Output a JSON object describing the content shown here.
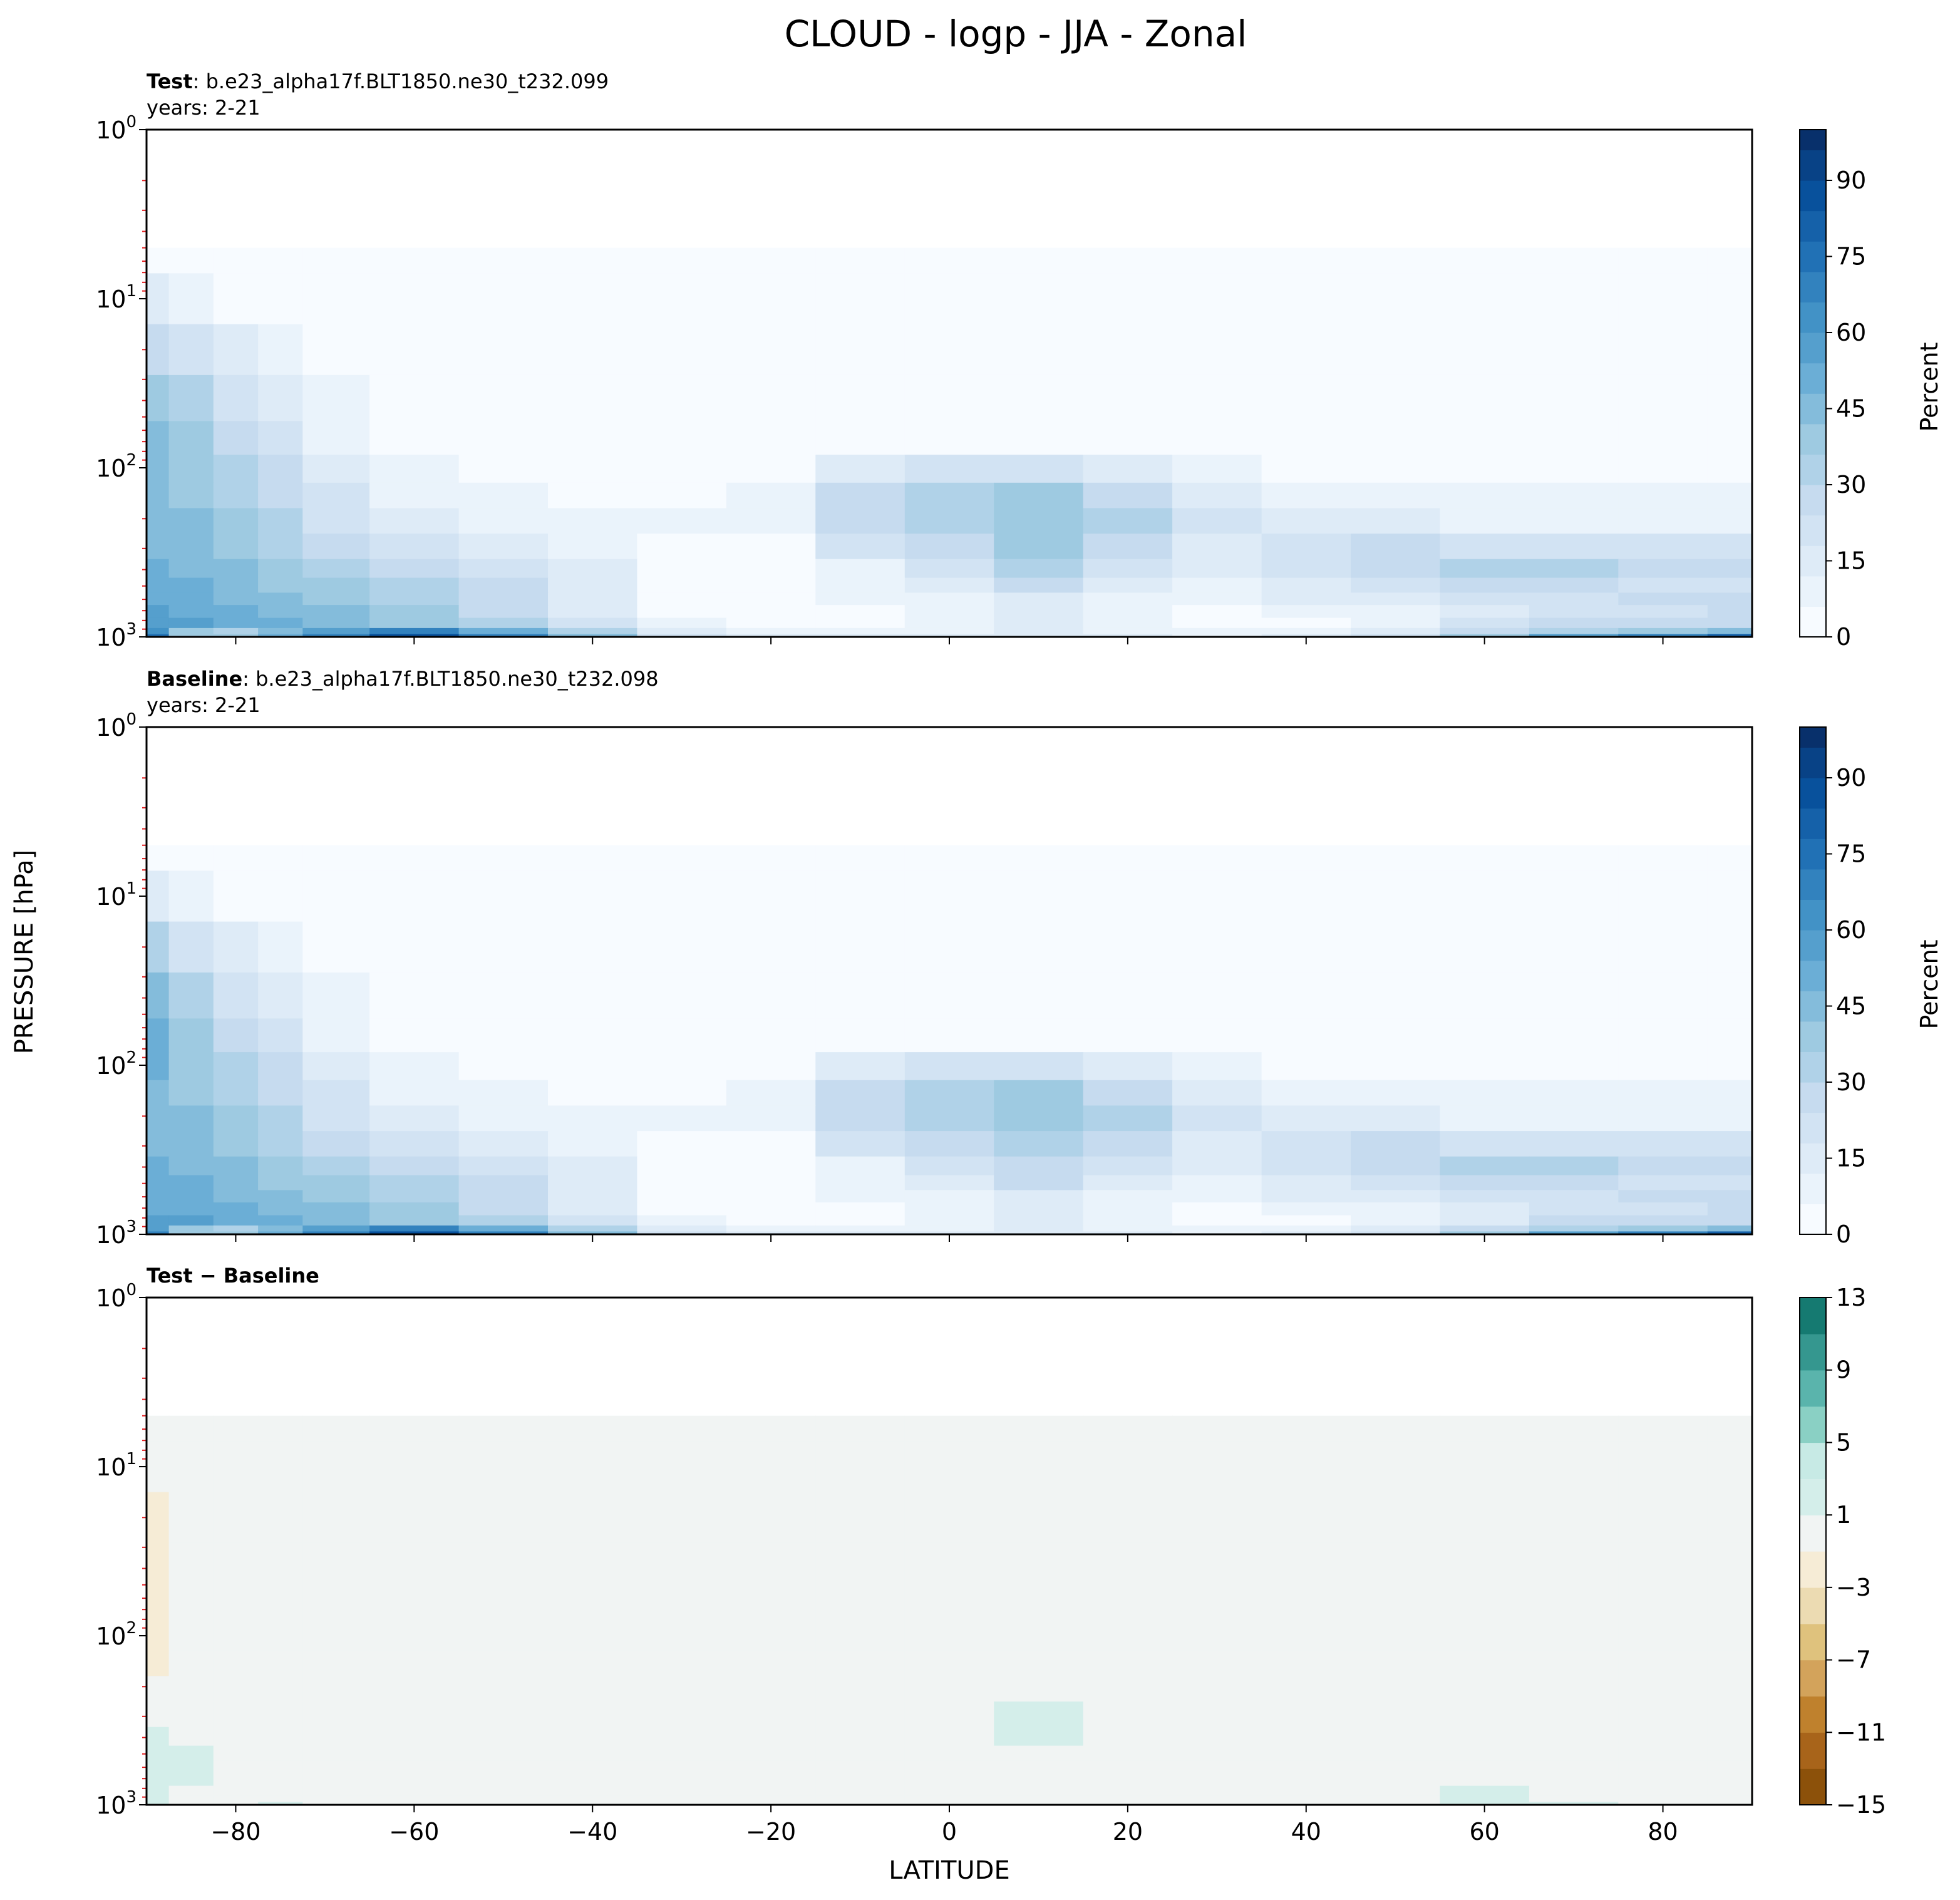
{
  "title": "CLOUD - logp - JJA - Zonal",
  "shared": {
    "ylabel": "PRESSURE [hPa]",
    "xlabel": "LATITUDE",
    "xticks": [
      -80,
      -60,
      -40,
      -20,
      0,
      20,
      40,
      60,
      80
    ],
    "xtick_labels": [
      "−80",
      "−60",
      "−40",
      "−20",
      "0",
      "20",
      "40",
      "60",
      "80"
    ],
    "ytick_labels": [
      {
        "base": "10",
        "exp": "0"
      },
      {
        "base": "10",
        "exp": "1"
      },
      {
        "base": "10",
        "exp": "2"
      },
      {
        "base": "10",
        "exp": "3"
      }
    ]
  },
  "panels": [
    {
      "key": "test",
      "head_bold": "Test",
      "head_rest": ": b.e23_alpha17f.BLT1850.ne30_t232.099",
      "line2": "years: 2-21",
      "colorbar_label": "Percent",
      "colorbar_ticks": [
        "0",
        "15",
        "30",
        "45",
        "60",
        "75",
        "90"
      ]
    },
    {
      "key": "baseline",
      "head_bold": "Baseline",
      "head_rest": ": b.e23_alpha17f.BLT1850.ne30_t232.098",
      "line2": "years: 2-21",
      "colorbar_label": "Percent",
      "colorbar_ticks": [
        "0",
        "15",
        "30",
        "45",
        "60",
        "75",
        "90"
      ]
    },
    {
      "key": "diff",
      "head_bold": "Test − Baseline",
      "head_rest": "",
      "line2": "",
      "colorbar_label": "",
      "colorbar_ticks": [
        "−15",
        "−11",
        "−7",
        "−3",
        "1",
        "5",
        "9",
        "13"
      ]
    }
  ],
  "colors": {
    "blues": [
      "#f7fbff",
      "#eaf3fb",
      "#deebf7",
      "#d2e3f3",
      "#c6dbef",
      "#b0d2e8",
      "#9ecae1",
      "#84bcdb",
      "#6baed6",
      "#559fcd",
      "#4292c6",
      "#3282be",
      "#2171b5",
      "#1561a9",
      "#08519c",
      "#084286",
      "#08306b"
    ],
    "brbg": [
      "#6c3d0c",
      "#8c510a",
      "#a8641a",
      "#bf812d",
      "#d3a35b",
      "#dfc27d",
      "#ecdbb2",
      "#f6ecd6",
      "#f1f4f3",
      "#d4eeea",
      "#c7eae5",
      "#8ad0c4",
      "#5ab4ac",
      "#35978f",
      "#157a71",
      "#01665e",
      "#004d44"
    ]
  },
  "chart_data": [
    {
      "type": "heatmap",
      "name": "Test",
      "units": "Percent",
      "x_range": [
        -90,
        90
      ],
      "y_range": [
        1,
        1000
      ],
      "y_scale": "log",
      "y_inverted": true,
      "colorbar_range": [
        0,
        100
      ],
      "colorbar_levels": [
        0,
        6,
        12,
        18,
        24,
        30,
        36,
        42,
        48,
        54,
        60,
        66,
        72,
        78,
        84,
        90,
        96,
        100
      ],
      "lat": [
        -90,
        -85,
        -80,
        -75,
        -70,
        -60,
        -50,
        -40,
        -30,
        -20,
        -10,
        0,
        10,
        20,
        30,
        40,
        50,
        60,
        70,
        80,
        90
      ],
      "plev": [
        5,
        10,
        20,
        40,
        70,
        100,
        150,
        200,
        300,
        400,
        500,
        600,
        700,
        850,
        925,
        1000
      ],
      "values": [
        [
          0,
          0,
          0,
          0,
          0,
          0,
          0,
          0,
          0,
          0,
          0,
          0,
          0,
          0,
          0,
          0,
          0,
          0,
          0,
          0,
          0
        ],
        [
          12,
          6,
          2,
          1,
          0,
          0,
          0,
          0,
          0,
          0,
          0,
          0,
          0,
          0,
          0,
          0,
          0,
          0,
          0,
          0,
          0
        ],
        [
          28,
          20,
          12,
          6,
          2,
          1,
          0,
          0,
          0,
          0,
          0,
          0,
          0,
          0,
          0,
          0,
          0,
          0,
          0,
          0,
          0
        ],
        [
          40,
          32,
          22,
          14,
          6,
          2,
          1,
          0,
          0,
          0,
          1,
          1,
          1,
          1,
          0,
          0,
          0,
          0,
          0,
          0,
          0
        ],
        [
          46,
          38,
          28,
          20,
          10,
          4,
          2,
          1,
          1,
          1,
          3,
          4,
          5,
          4,
          2,
          1,
          1,
          1,
          1,
          1,
          1
        ],
        [
          46,
          40,
          32,
          24,
          14,
          6,
          3,
          2,
          2,
          4,
          12,
          20,
          22,
          16,
          8,
          4,
          3,
          3,
          3,
          3,
          3
        ],
        [
          44,
          40,
          34,
          28,
          18,
          10,
          6,
          4,
          4,
          10,
          24,
          32,
          36,
          28,
          16,
          8,
          6,
          6,
          6,
          6,
          6
        ],
        [
          44,
          42,
          36,
          30,
          22,
          14,
          10,
          6,
          6,
          10,
          26,
          34,
          40,
          30,
          18,
          12,
          12,
          10,
          10,
          10,
          10
        ],
        [
          46,
          44,
          38,
          34,
          28,
          20,
          14,
          10,
          4,
          2,
          18,
          28,
          36,
          26,
          16,
          18,
          24,
          22,
          22,
          20,
          20
        ],
        [
          48,
          46,
          42,
          38,
          32,
          26,
          20,
          14,
          4,
          1,
          10,
          22,
          30,
          20,
          12,
          20,
          28,
          32,
          34,
          26,
          24
        ],
        [
          50,
          48,
          44,
          40,
          36,
          30,
          24,
          16,
          4,
          1,
          8,
          16,
          24,
          16,
          10,
          16,
          22,
          26,
          26,
          22,
          22
        ],
        [
          52,
          50,
          46,
          44,
          40,
          34,
          26,
          16,
          4,
          1,
          6,
          10,
          14,
          10,
          8,
          12,
          16,
          20,
          22,
          24,
          26
        ],
        [
          54,
          52,
          48,
          46,
          42,
          36,
          28,
          16,
          4,
          1,
          4,
          8,
          12,
          8,
          4,
          6,
          10,
          16,
          20,
          22,
          24
        ],
        [
          58,
          54,
          50,
          48,
          46,
          40,
          30,
          18,
          6,
          2,
          4,
          8,
          12,
          6,
          2,
          3,
          8,
          18,
          24,
          26,
          28
        ],
        [
          60,
          40,
          30,
          44,
          56,
          66,
          50,
          30,
          12,
          6,
          6,
          10,
          12,
          10,
          6,
          6,
          12,
          26,
          34,
          40,
          46
        ],
        [
          72,
          40,
          36,
          52,
          70,
          84,
          70,
          44,
          22,
          12,
          12,
          14,
          16,
          14,
          10,
          12,
          20,
          40,
          56,
          70,
          80
        ]
      ]
    },
    {
      "type": "heatmap",
      "name": "Baseline",
      "units": "Percent",
      "x_range": [
        -90,
        90
      ],
      "y_range": [
        1,
        1000
      ],
      "y_scale": "log",
      "y_inverted": true,
      "colorbar_range": [
        0,
        100
      ],
      "colorbar_levels": [
        0,
        6,
        12,
        18,
        24,
        30,
        36,
        42,
        48,
        54,
        60,
        66,
        72,
        78,
        84,
        90,
        96,
        100
      ],
      "lat": [
        -90,
        -85,
        -80,
        -75,
        -70,
        -60,
        -50,
        -40,
        -30,
        -20,
        -10,
        0,
        10,
        20,
        30,
        40,
        50,
        60,
        70,
        80,
        90
      ],
      "plev": [
        5,
        10,
        20,
        40,
        70,
        100,
        150,
        200,
        300,
        400,
        500,
        600,
        700,
        850,
        925,
        1000
      ],
      "values": [
        [
          0,
          0,
          0,
          0,
          0,
          0,
          0,
          0,
          0,
          0,
          0,
          0,
          0,
          0,
          0,
          0,
          0,
          0,
          0,
          0,
          0
        ],
        [
          13,
          6,
          2,
          1,
          0,
          0,
          0,
          0,
          0,
          0,
          0,
          0,
          0,
          0,
          0,
          0,
          0,
          0,
          0,
          0,
          0
        ],
        [
          30,
          21,
          12,
          6,
          2,
          1,
          0,
          0,
          0,
          0,
          0,
          0,
          0,
          0,
          0,
          0,
          0,
          0,
          0,
          0,
          0
        ],
        [
          42,
          33,
          22,
          14,
          6,
          2,
          1,
          0,
          0,
          0,
          1,
          1,
          1,
          1,
          0,
          0,
          0,
          0,
          0,
          0,
          0
        ],
        [
          48,
          39,
          28,
          20,
          10,
          4,
          2,
          1,
          1,
          1,
          3,
          4,
          5,
          4,
          2,
          1,
          1,
          1,
          1,
          1,
          1
        ],
        [
          48,
          41,
          32,
          24,
          14,
          6,
          3,
          2,
          2,
          4,
          12,
          21,
          23,
          16,
          8,
          4,
          3,
          3,
          3,
          3,
          3
        ],
        [
          46,
          41,
          34,
          28,
          18,
          10,
          6,
          4,
          4,
          10,
          24,
          32,
          36,
          28,
          16,
          8,
          6,
          6,
          6,
          6,
          6
        ],
        [
          45,
          42,
          36,
          30,
          22,
          14,
          10,
          6,
          6,
          10,
          26,
          34,
          40,
          30,
          18,
          12,
          12,
          10,
          10,
          10,
          10
        ],
        [
          46,
          44,
          38,
          34,
          28,
          20,
          14,
          10,
          4,
          2,
          18,
          28,
          35,
          26,
          16,
          18,
          24,
          22,
          22,
          20,
          20
        ],
        [
          48,
          46,
          42,
          38,
          32,
          26,
          20,
          14,
          4,
          1,
          10,
          22,
          29,
          20,
          12,
          20,
          28,
          32,
          34,
          26,
          24
        ],
        [
          49,
          48,
          44,
          40,
          36,
          30,
          24,
          16,
          4,
          1,
          8,
          16,
          24,
          16,
          10,
          16,
          22,
          26,
          26,
          22,
          22
        ],
        [
          51,
          50,
          46,
          44,
          40,
          34,
          26,
          16,
          4,
          1,
          6,
          10,
          14,
          10,
          8,
          12,
          16,
          20,
          22,
          24,
          26
        ],
        [
          53,
          52,
          48,
          46,
          42,
          36,
          28,
          16,
          4,
          1,
          4,
          8,
          12,
          8,
          4,
          6,
          10,
          16,
          20,
          22,
          24
        ],
        [
          56,
          54,
          50,
          48,
          46,
          40,
          30,
          18,
          6,
          2,
          4,
          8,
          12,
          6,
          2,
          3,
          8,
          17,
          24,
          26,
          28
        ],
        [
          58,
          40,
          30,
          44,
          56,
          66,
          50,
          30,
          12,
          6,
          6,
          10,
          12,
          10,
          6,
          6,
          12,
          24,
          34,
          40,
          46
        ],
        [
          70,
          40,
          36,
          52,
          70,
          84,
          70,
          44,
          22,
          12,
          12,
          14,
          16,
          14,
          10,
          12,
          20,
          38,
          56,
          70,
          80
        ]
      ]
    },
    {
      "type": "heatmap",
      "name": "Test − Baseline",
      "x_range": [
        -90,
        90
      ],
      "y_range": [
        1,
        1000
      ],
      "y_scale": "log",
      "y_inverted": true,
      "colorbar_range": [
        -15,
        13
      ],
      "colorbar_levels": [
        -15,
        -13,
        -11,
        -9,
        -7,
        -5,
        -3,
        -1,
        1,
        3,
        5,
        7,
        9,
        11,
        13
      ],
      "lat": [
        -90,
        -85,
        -80,
        -75,
        -70,
        -60,
        -50,
        -40,
        -30,
        -20,
        -10,
        0,
        10,
        20,
        30,
        40,
        50,
        60,
        70,
        80,
        90
      ],
      "plev": [
        5,
        10,
        20,
        40,
        70,
        100,
        150,
        200,
        300,
        400,
        500,
        600,
        700,
        850,
        925,
        1000
      ],
      "values": [
        [
          0,
          0,
          0,
          0,
          0,
          0,
          0,
          0,
          0,
          0,
          0,
          0,
          0,
          0,
          0,
          0,
          0,
          0,
          0,
          0,
          0
        ],
        [
          -1,
          0,
          0,
          0,
          0,
          0,
          0,
          0,
          0,
          0,
          0,
          0,
          0,
          0,
          0,
          0,
          0,
          0,
          0,
          0,
          0
        ],
        [
          -2,
          -1,
          0,
          0,
          0,
          0,
          0,
          0,
          0,
          0,
          0,
          0,
          0,
          0,
          0,
          0,
          0,
          0,
          0,
          0,
          0
        ],
        [
          -2,
          -1,
          0,
          0,
          0,
          0,
          0,
          0,
          0,
          0,
          0,
          0,
          0,
          0,
          0,
          0,
          0,
          0,
          0,
          0,
          0
        ],
        [
          -2,
          -1,
          0,
          0,
          0,
          0,
          0,
          0,
          0,
          0,
          0,
          0,
          0,
          0,
          0,
          0,
          0,
          0,
          0,
          0,
          0
        ],
        [
          -2,
          -1,
          0,
          0,
          0,
          0,
          0,
          0,
          0,
          0,
          -1,
          -1,
          0,
          0,
          0,
          0,
          0,
          0,
          0,
          0,
          0
        ],
        [
          -2,
          -1,
          0,
          0,
          0,
          0,
          0,
          0,
          0,
          0,
          0,
          0,
          0,
          0,
          0,
          0,
          0,
          0,
          0,
          0,
          0
        ],
        [
          -1,
          0,
          0,
          0,
          0,
          0,
          0,
          0,
          0,
          0,
          0,
          0,
          0,
          0,
          0,
          0,
          0,
          0,
          0,
          0,
          0
        ],
        [
          0,
          0,
          0,
          0,
          0,
          0,
          0,
          0,
          0,
          0,
          0,
          0,
          1,
          0,
          0,
          0,
          0,
          0,
          0,
          0,
          0
        ],
        [
          1,
          0,
          0,
          0,
          0,
          0,
          0,
          0,
          0,
          0,
          0,
          0,
          1,
          0,
          0,
          0,
          0,
          0,
          0,
          0,
          0
        ],
        [
          2,
          1,
          0,
          0,
          0,
          0,
          0,
          0,
          0,
          0,
          0,
          0,
          0,
          0,
          0,
          0,
          0,
          0,
          0,
          0,
          0
        ],
        [
          2,
          1,
          0,
          0,
          0,
          0,
          0,
          0,
          0,
          0,
          0,
          0,
          0,
          0,
          0,
          0,
          0,
          0,
          0,
          0,
          0
        ],
        [
          1,
          1,
          0,
          0,
          0,
          0,
          0,
          0,
          0,
          0,
          0,
          0,
          0,
          0,
          0,
          0,
          0,
          0,
          0,
          0,
          0
        ],
        [
          1,
          0,
          0,
          0,
          0,
          0,
          0,
          0,
          0,
          0,
          0,
          0,
          0,
          0,
          0,
          0,
          0,
          1,
          0,
          0,
          0
        ],
        [
          1,
          0,
          -1,
          0,
          0,
          0,
          0,
          0,
          0,
          0,
          0,
          0,
          0,
          0,
          0,
          0,
          0,
          2,
          0,
          0,
          0
        ],
        [
          1,
          0,
          -1,
          1,
          0,
          0,
          0,
          0,
          0,
          0,
          0,
          0,
          0,
          0,
          0,
          0,
          0,
          1,
          1,
          0,
          0
        ]
      ]
    }
  ]
}
